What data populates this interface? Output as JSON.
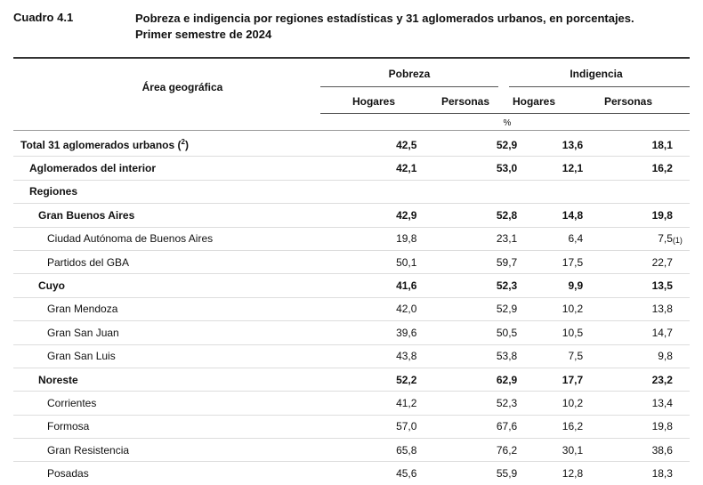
{
  "caption": {
    "label": "Cuadro 4.1",
    "title_line1": "Pobreza e indigencia por regiones estadísticas y 31 aglomerados urbanos, en porcentajes.",
    "title_line2": "Primer semestre de 2024"
  },
  "header": {
    "area": "Área geográfica",
    "pobreza": "Pobreza",
    "indigencia": "Indigencia",
    "hogares1": "Hogares",
    "personas1": "Personas",
    "hogares2": "Hogares",
    "personas2": "Personas",
    "unit": "%"
  },
  "rows": [
    {
      "label": "Total 31 aglomerados urbanos (2)",
      "pob_hog": "42,5",
      "pob_per": "52,9",
      "ind_hog": "13,6",
      "ind_per": "18,1",
      "note": ""
    },
    {
      "label": "Aglomerados del interior",
      "pob_hog": "42,1",
      "pob_per": "53,0",
      "ind_hog": "12,1",
      "ind_per": "16,2",
      "note": ""
    },
    {
      "label": "Regiones",
      "pob_hog": "",
      "pob_per": "",
      "ind_hog": "",
      "ind_per": "",
      "note": ""
    },
    {
      "label": "Gran Buenos Aires",
      "pob_hog": "42,9",
      "pob_per": "52,8",
      "ind_hog": "14,8",
      "ind_per": "19,8",
      "note": ""
    },
    {
      "label": "Ciudad Autónoma de Buenos Aires",
      "pob_hog": "19,8",
      "pob_per": "23,1",
      "ind_hog": "6,4",
      "ind_per": "7,5",
      "note": "(1)"
    },
    {
      "label": "Partidos del GBA",
      "pob_hog": "50,1",
      "pob_per": "59,7",
      "ind_hog": "17,5",
      "ind_per": "22,7",
      "note": ""
    },
    {
      "label": "Cuyo",
      "pob_hog": "41,6",
      "pob_per": "52,3",
      "ind_hog": "9,9",
      "ind_per": "13,5",
      "note": ""
    },
    {
      "label": "Gran Mendoza",
      "pob_hog": "42,0",
      "pob_per": "52,9",
      "ind_hog": "10,2",
      "ind_per": "13,8",
      "note": ""
    },
    {
      "label": "Gran San Juan",
      "pob_hog": "39,6",
      "pob_per": "50,5",
      "ind_hog": "10,5",
      "ind_per": "14,7",
      "note": ""
    },
    {
      "label": "Gran San Luis",
      "pob_hog": "43,8",
      "pob_per": "53,8",
      "ind_hog": "7,5",
      "ind_per": "9,8",
      "note": ""
    },
    {
      "label": "Noreste",
      "pob_hog": "52,2",
      "pob_per": "62,9",
      "ind_hog": "17,7",
      "ind_per": "23,2",
      "note": ""
    },
    {
      "label": "Corrientes",
      "pob_hog": "41,2",
      "pob_per": "52,3",
      "ind_hog": "10,2",
      "ind_per": "13,4",
      "note": ""
    },
    {
      "label": "Formosa",
      "pob_hog": "57,0",
      "pob_per": "67,6",
      "ind_hog": "16,2",
      "ind_per": "19,8",
      "note": ""
    },
    {
      "label": "Gran Resistencia",
      "pob_hog": "65,8",
      "pob_per": "76,2",
      "ind_hog": "30,1",
      "ind_per": "38,6",
      "note": ""
    },
    {
      "label": "Posadas",
      "pob_hog": "45,6",
      "pob_per": "55,9",
      "ind_hog": "12,8",
      "ind_per": "18,3",
      "note": ""
    }
  ]
}
